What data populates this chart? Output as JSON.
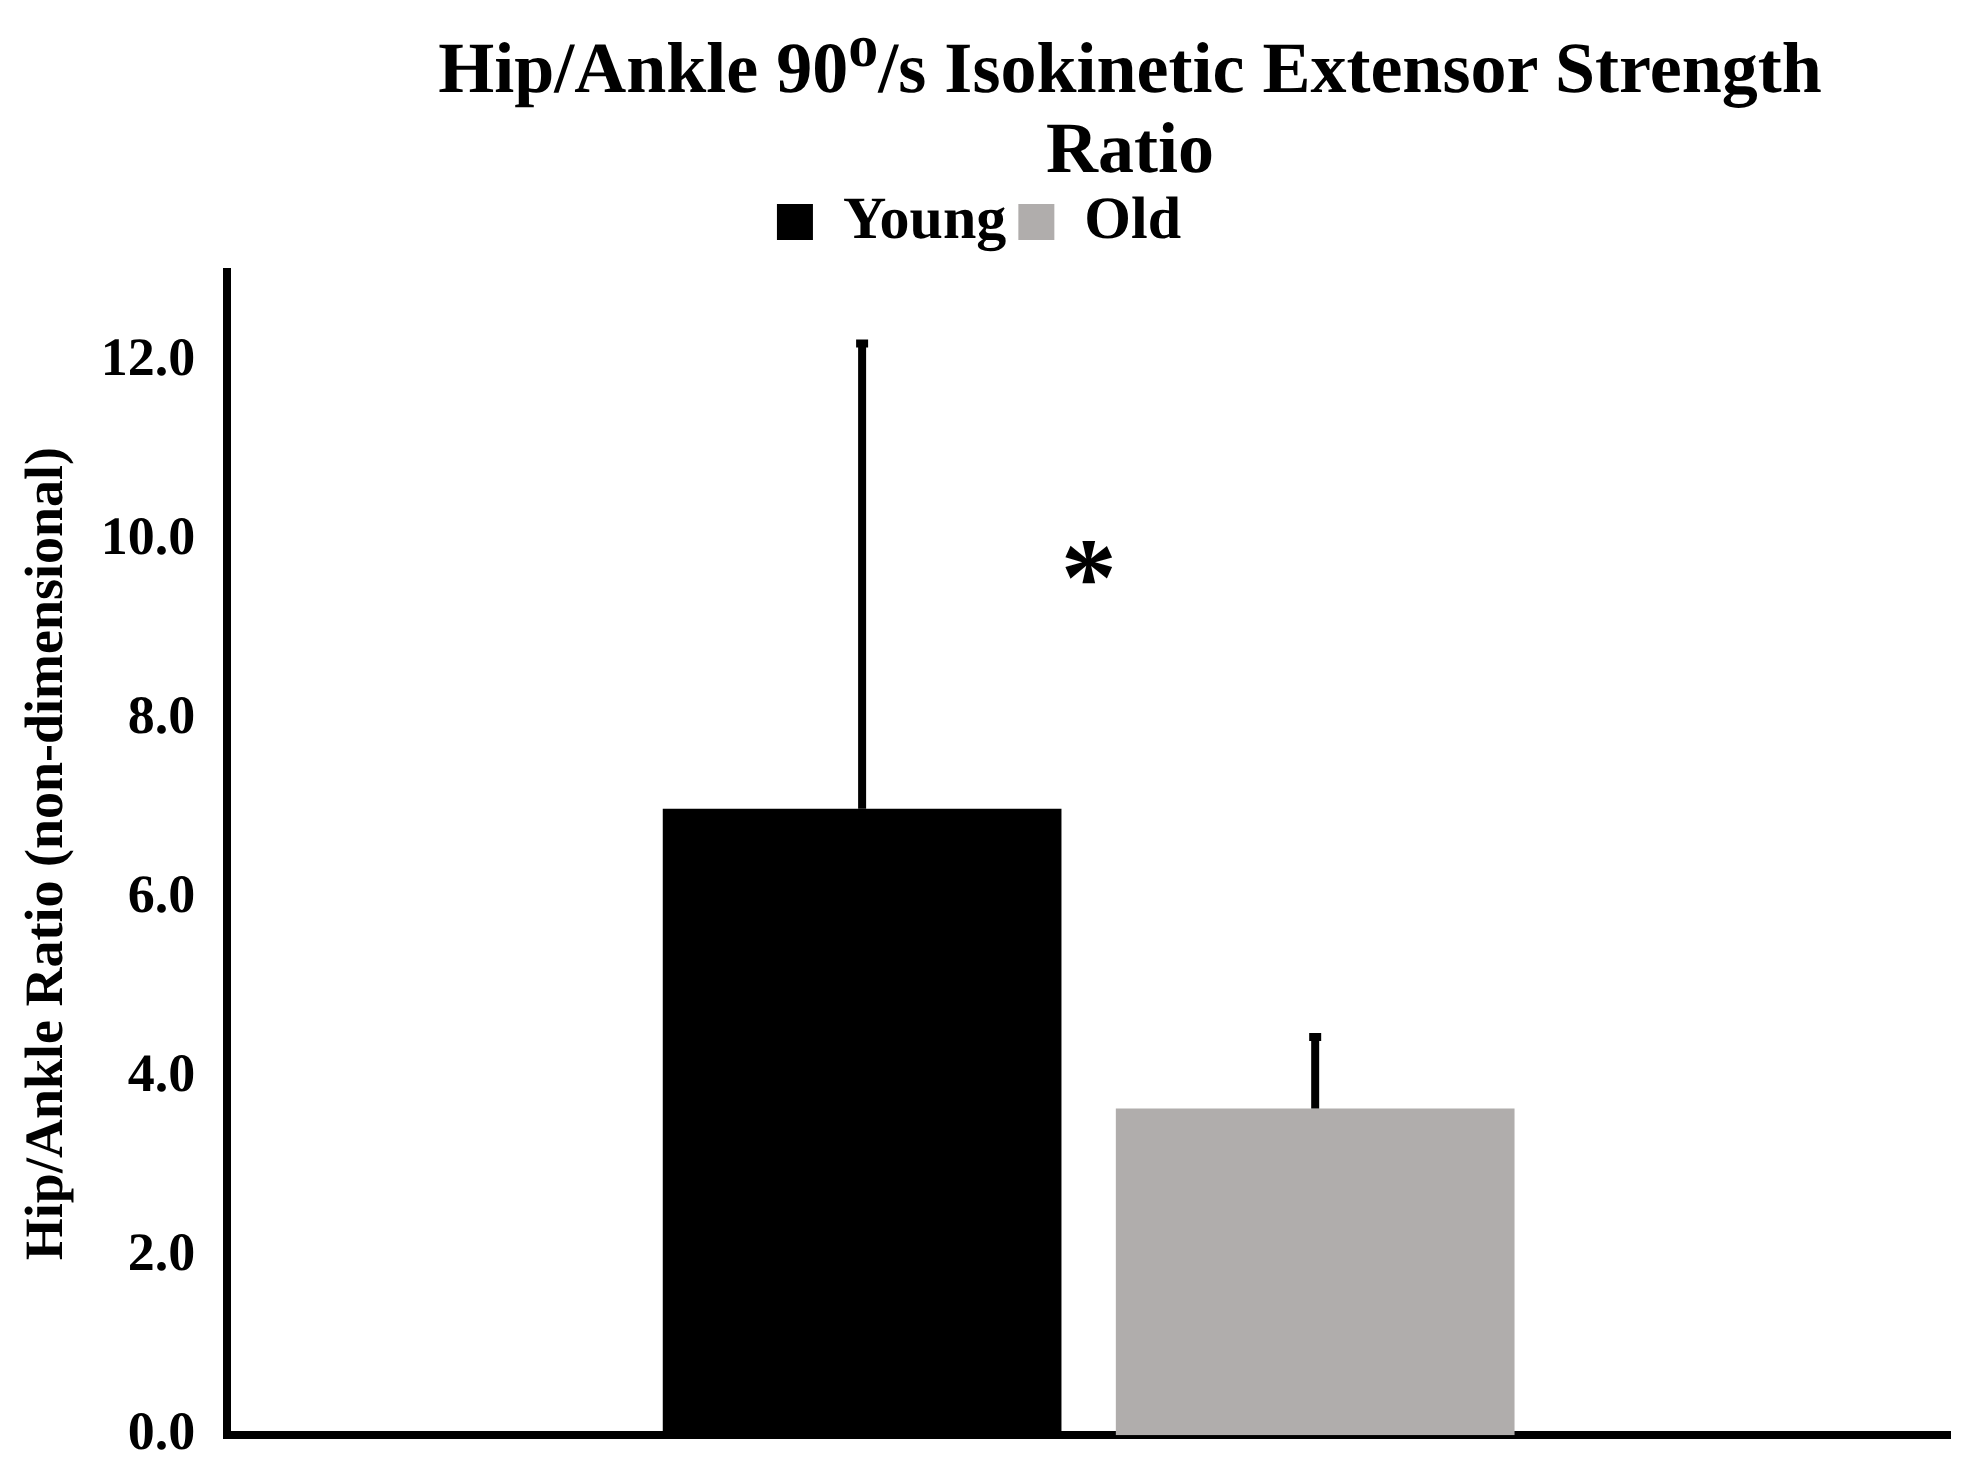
{
  "chart_data": {
    "type": "bar",
    "title": "Hip/Ankle 90$^{o}$/s Isokinetic Extensor Strength Ratio",
    "ylabel": "Hip/Ankle Ratio (non-dimensional)",
    "categories": [
      null
    ],
    "series": [
      {
        "name": "Young",
        "color": "#000000",
        "values": [
          7.0
        ],
        "errors": [
          [
            7.0,
            12.2
          ]
        ]
      },
      {
        "name": "Old",
        "color": "#b0adac",
        "values": [
          3.65
        ],
        "errors": [
          [
            3.65,
            4.45
          ]
        ]
      }
    ],
    "ylim": [
      0,
      13
    ],
    "yticks": [
      {
        "value": 0,
        "label": "0.0"
      },
      {
        "value": 2,
        "label": "2.0"
      },
      {
        "value": 4,
        "label": "4.0"
      },
      {
        "value": 6,
        "label": "6.0"
      },
      {
        "value": 8,
        "label": "8.0"
      },
      {
        "value": 10,
        "label": "10.0"
      },
      {
        "value": 12,
        "label": "12.0"
      }
    ],
    "annotations": [
      "*"
    ],
    "legend": "top",
    "grid": false
  }
}
